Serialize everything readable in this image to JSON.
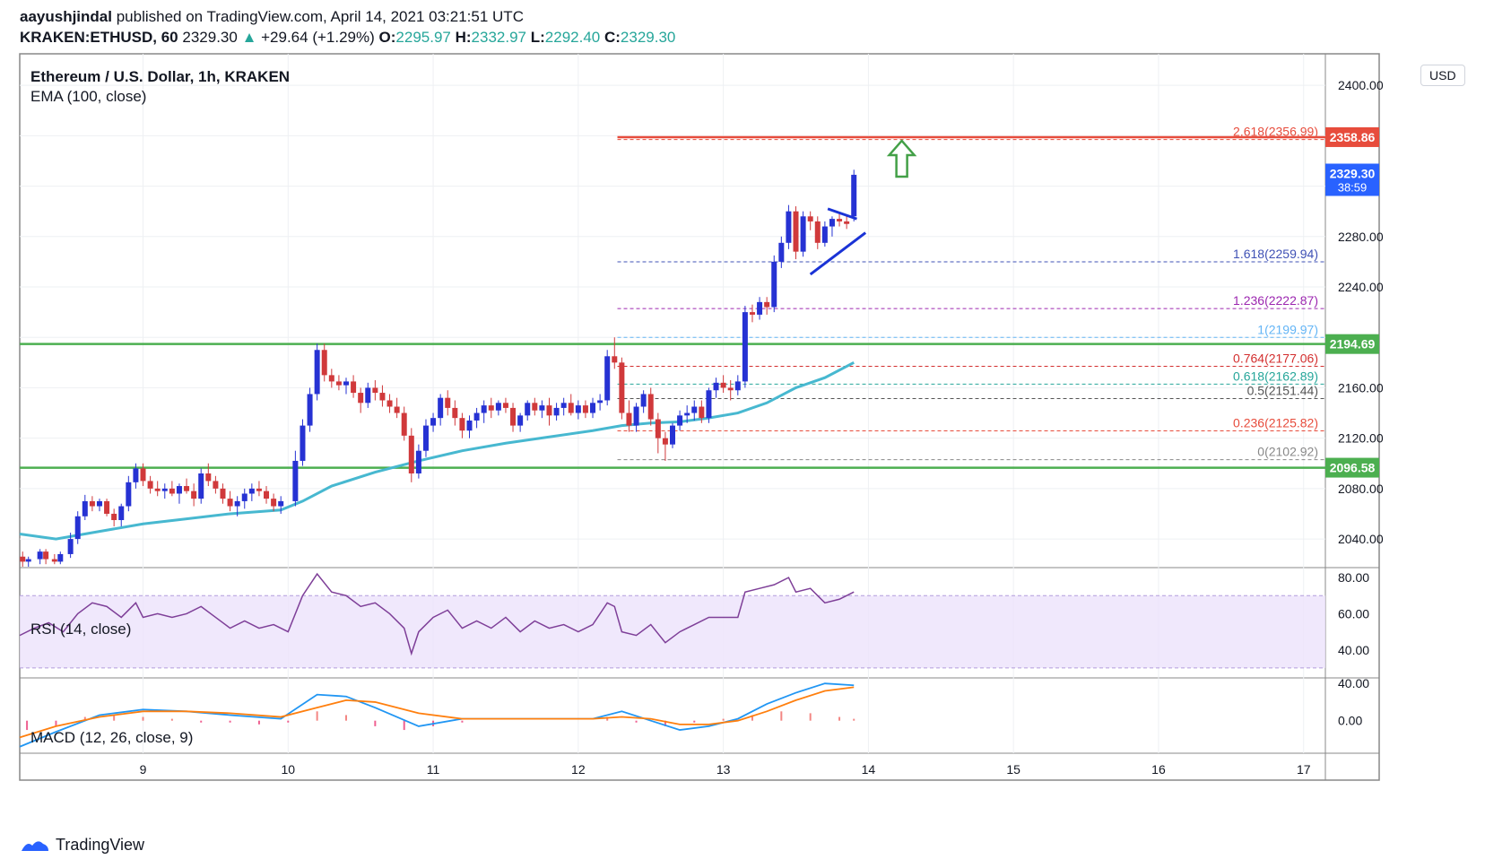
{
  "header": {
    "publisher": "aayushjindal",
    "published_text": "published on TradingView.com, April 14, 2021 03:21:51 UTC",
    "symbol": "KRAKEN:ETHUSD, 60",
    "last": "2329.30",
    "change_arrow": "▲",
    "change": "+29.64 (+1.29%)",
    "o_label": "O:",
    "o": "2295.97",
    "h_label": "H:",
    "h": "2332.97",
    "l_label": "L:",
    "l": "2292.40",
    "c_label": "C:",
    "c": "2329.30"
  },
  "legend": {
    "title": "Ethereum / U.S. Dollar, 1h, KRAKEN",
    "ema": "EMA (100, close)",
    "rsi": "RSI (14, close)",
    "macd": "MACD (12, 26, close, 9)"
  },
  "price_axis": {
    "currency": "USD",
    "ticks": [
      "2400.00",
      "2280.00",
      "2240.00",
      "2160.00",
      "2120.00",
      "2080.00",
      "2040.00"
    ]
  },
  "badges": [
    {
      "text": "2358.86",
      "color": "#e74c3c"
    },
    {
      "text": "2329.30",
      "sub": "38:59",
      "color": "#2962ff"
    },
    {
      "text": "2194.69",
      "color": "#4caf50"
    },
    {
      "text": "2096.58",
      "color": "#4caf50"
    }
  ],
  "rsi_axis": [
    "80.00",
    "60.00",
    "40.00"
  ],
  "macd_axis": [
    "40.00",
    "0.00"
  ],
  "time_axis": [
    "9",
    "10",
    "11",
    "12",
    "13",
    "14",
    "15",
    "16",
    "17"
  ],
  "fib_levels": [
    {
      "label": "2.618(2356.99)",
      "value": 2356.99,
      "color": "#e74c3c"
    },
    {
      "label": "1.618(2259.94)",
      "value": 2259.94,
      "color": "#3f51b5"
    },
    {
      "label": "1.236(2222.87)",
      "value": 2222.87,
      "color": "#9c27b0"
    },
    {
      "label": "1(2199.97)",
      "value": 2199.97,
      "color": "#64b5f6"
    },
    {
      "label": "0.764(2177.06)",
      "value": 2177.06,
      "color": "#d32f2f"
    },
    {
      "label": "0.618(2162.89)",
      "value": 2162.89,
      "color": "#26a69a"
    },
    {
      "label": "0.5(2151.44)",
      "value": 2151.44,
      "color": "#555555"
    },
    {
      "label": "0.236(2125.82)",
      "value": 2125.82,
      "color": "#e74c3c"
    },
    {
      "label": "0(2102.92)",
      "value": 2102.92,
      "color": "#888888"
    }
  ],
  "chart_data": {
    "type": "candlestick",
    "price_range": [
      2018,
      2425
    ],
    "time_range_days": [
      8.15,
      17.15
    ],
    "horizontal_levels": [
      {
        "value": 2358.86,
        "color": "#e74c3c"
      },
      {
        "value": 2194.69,
        "color": "#4caf50"
      },
      {
        "value": 2096.58,
        "color": "#4caf50"
      }
    ],
    "candles": [
      [
        8.17,
        2026,
        2030,
        2018,
        2022
      ],
      [
        8.21,
        2022,
        2026,
        2018,
        2024
      ],
      [
        8.29,
        2024,
        2032,
        2020,
        2030
      ],
      [
        8.33,
        2030,
        2032,
        2020,
        2024
      ],
      [
        8.39,
        2024,
        2028,
        2020,
        2022
      ],
      [
        8.43,
        2022,
        2030,
        2020,
        2028
      ],
      [
        8.5,
        2028,
        2045,
        2025,
        2040
      ],
      [
        8.55,
        2040,
        2062,
        2036,
        2058
      ],
      [
        8.6,
        2058,
        2075,
        2055,
        2070
      ],
      [
        8.65,
        2070,
        2074,
        2062,
        2066
      ],
      [
        8.7,
        2066,
        2072,
        2062,
        2070
      ],
      [
        8.75,
        2070,
        2072,
        2058,
        2060
      ],
      [
        8.8,
        2060,
        2064,
        2050,
        2055
      ],
      [
        8.85,
        2055,
        2068,
        2050,
        2066
      ],
      [
        8.9,
        2066,
        2090,
        2062,
        2085
      ],
      [
        8.95,
        2085,
        2100,
        2080,
        2096
      ],
      [
        9.0,
        2096,
        2100,
        2082,
        2086
      ],
      [
        9.05,
        2086,
        2090,
        2076,
        2080
      ],
      [
        9.1,
        2080,
        2086,
        2074,
        2078
      ],
      [
        9.15,
        2078,
        2084,
        2072,
        2080
      ],
      [
        9.2,
        2080,
        2086,
        2074,
        2076
      ],
      [
        9.25,
        2076,
        2084,
        2068,
        2082
      ],
      [
        9.3,
        2082,
        2088,
        2076,
        2078
      ],
      [
        9.35,
        2078,
        2084,
        2066,
        2072
      ],
      [
        9.4,
        2072,
        2096,
        2068,
        2092
      ],
      [
        9.45,
        2092,
        2100,
        2082,
        2086
      ],
      [
        9.5,
        2086,
        2090,
        2076,
        2080
      ],
      [
        9.55,
        2080,
        2084,
        2068,
        2072
      ],
      [
        9.6,
        2072,
        2078,
        2062,
        2066
      ],
      [
        9.65,
        2066,
        2074,
        2058,
        2070
      ],
      [
        9.7,
        2070,
        2080,
        2064,
        2076
      ],
      [
        9.75,
        2076,
        2084,
        2070,
        2080
      ],
      [
        9.8,
        2080,
        2086,
        2074,
        2078
      ],
      [
        9.85,
        2078,
        2082,
        2068,
        2072
      ],
      [
        9.9,
        2072,
        2076,
        2062,
        2066
      ],
      [
        9.95,
        2066,
        2074,
        2060,
        2070
      ],
      [
        10.05,
        2070,
        2110,
        2066,
        2102
      ],
      [
        10.1,
        2102,
        2135,
        2098,
        2130
      ],
      [
        10.15,
        2130,
        2160,
        2125,
        2155
      ],
      [
        10.2,
        2155,
        2195,
        2150,
        2190
      ],
      [
        10.25,
        2190,
        2195,
        2165,
        2170
      ],
      [
        10.3,
        2170,
        2175,
        2160,
        2165
      ],
      [
        10.35,
        2165,
        2170,
        2158,
        2162
      ],
      [
        10.4,
        2162,
        2168,
        2155,
        2165
      ],
      [
        10.45,
        2165,
        2170,
        2152,
        2156
      ],
      [
        10.5,
        2156,
        2160,
        2140,
        2148
      ],
      [
        10.55,
        2148,
        2164,
        2144,
        2160
      ],
      [
        10.6,
        2160,
        2166,
        2150,
        2156
      ],
      [
        10.65,
        2156,
        2162,
        2145,
        2150
      ],
      [
        10.7,
        2150,
        2155,
        2140,
        2145
      ],
      [
        10.75,
        2145,
        2152,
        2136,
        2140
      ],
      [
        10.8,
        2140,
        2145,
        2118,
        2122
      ],
      [
        10.85,
        2122,
        2128,
        2085,
        2092
      ],
      [
        10.9,
        2092,
        2115,
        2088,
        2110
      ],
      [
        10.95,
        2110,
        2135,
        2105,
        2130
      ],
      [
        11.0,
        2130,
        2140,
        2125,
        2136
      ],
      [
        11.05,
        2136,
        2155,
        2130,
        2152
      ],
      [
        11.1,
        2152,
        2158,
        2138,
        2144
      ],
      [
        11.15,
        2144,
        2150,
        2130,
        2136
      ],
      [
        11.2,
        2136,
        2140,
        2120,
        2126
      ],
      [
        11.25,
        2126,
        2138,
        2120,
        2134
      ],
      [
        11.3,
        2134,
        2144,
        2128,
        2140
      ],
      [
        11.35,
        2140,
        2150,
        2132,
        2146
      ],
      [
        11.4,
        2146,
        2152,
        2136,
        2142
      ],
      [
        11.45,
        2142,
        2150,
        2138,
        2148
      ],
      [
        11.5,
        2148,
        2152,
        2140,
        2144
      ],
      [
        11.55,
        2144,
        2148,
        2125,
        2130
      ],
      [
        11.6,
        2130,
        2140,
        2125,
        2138
      ],
      [
        11.65,
        2138,
        2150,
        2134,
        2148
      ],
      [
        11.7,
        2148,
        2152,
        2138,
        2142
      ],
      [
        11.75,
        2142,
        2150,
        2136,
        2146
      ],
      [
        11.8,
        2146,
        2152,
        2130,
        2138
      ],
      [
        11.85,
        2138,
        2148,
        2134,
        2144
      ],
      [
        11.9,
        2144,
        2152,
        2138,
        2148
      ],
      [
        11.95,
        2148,
        2155,
        2138,
        2140
      ],
      [
        12.0,
        2140,
        2150,
        2135,
        2146
      ],
      [
        12.05,
        2146,
        2150,
        2136,
        2140
      ],
      [
        12.1,
        2140,
        2152,
        2136,
        2148
      ],
      [
        12.15,
        2148,
        2155,
        2142,
        2150
      ],
      [
        12.2,
        2150,
        2190,
        2146,
        2185
      ],
      [
        12.25,
        2185,
        2200,
        2175,
        2180
      ],
      [
        12.3,
        2180,
        2184,
        2135,
        2140
      ],
      [
        12.35,
        2140,
        2150,
        2125,
        2130
      ],
      [
        12.4,
        2130,
        2148,
        2125,
        2145
      ],
      [
        12.45,
        2145,
        2158,
        2140,
        2155
      ],
      [
        12.5,
        2155,
        2160,
        2130,
        2135
      ],
      [
        12.55,
        2135,
        2140,
        2108,
        2120
      ],
      [
        12.6,
        2120,
        2125,
        2102,
        2115
      ],
      [
        12.65,
        2115,
        2132,
        2112,
        2130
      ],
      [
        12.7,
        2130,
        2142,
        2126,
        2138
      ],
      [
        12.75,
        2138,
        2146,
        2132,
        2140
      ],
      [
        12.8,
        2140,
        2150,
        2134,
        2145
      ],
      [
        12.85,
        2145,
        2150,
        2132,
        2136
      ],
      [
        12.9,
        2136,
        2160,
        2132,
        2158
      ],
      [
        12.95,
        2158,
        2168,
        2152,
        2164
      ],
      [
        13.0,
        2164,
        2170,
        2156,
        2160
      ],
      [
        13.05,
        2160,
        2166,
        2150,
        2158
      ],
      [
        13.1,
        2158,
        2170,
        2154,
        2165
      ],
      [
        13.15,
        2165,
        2225,
        2160,
        2220
      ],
      [
        13.2,
        2220,
        2226,
        2212,
        2218
      ],
      [
        13.25,
        2218,
        2232,
        2214,
        2228
      ],
      [
        13.3,
        2228,
        2232,
        2218,
        2224
      ],
      [
        13.35,
        2224,
        2265,
        2220,
        2260
      ],
      [
        13.4,
        2260,
        2280,
        2255,
        2275
      ],
      [
        13.45,
        2275,
        2305,
        2270,
        2300
      ],
      [
        13.5,
        2300,
        2304,
        2262,
        2268
      ],
      [
        13.55,
        2268,
        2300,
        2264,
        2296
      ],
      [
        13.6,
        2296,
        2300,
        2285,
        2292
      ],
      [
        13.65,
        2292,
        2296,
        2270,
        2275
      ],
      [
        13.7,
        2275,
        2292,
        2272,
        2288
      ],
      [
        13.75,
        2288,
        2296,
        2280,
        2294
      ],
      [
        13.8,
        2294,
        2298,
        2288,
        2292
      ],
      [
        13.85,
        2292,
        2296,
        2286,
        2290
      ],
      [
        13.9,
        2296,
        2333,
        2292,
        2329
      ]
    ],
    "ema": [
      [
        8.15,
        2044
      ],
      [
        8.4,
        2040
      ],
      [
        8.7,
        2046
      ],
      [
        9.0,
        2052
      ],
      [
        9.3,
        2056
      ],
      [
        9.6,
        2060
      ],
      [
        9.95,
        2063
      ],
      [
        10.1,
        2070
      ],
      [
        10.3,
        2082
      ],
      [
        10.6,
        2093
      ],
      [
        10.9,
        2102
      ],
      [
        11.2,
        2110
      ],
      [
        11.5,
        2116
      ],
      [
        11.8,
        2121
      ],
      [
        12.1,
        2126
      ],
      [
        12.3,
        2130
      ],
      [
        12.5,
        2132
      ],
      [
        12.7,
        2133
      ],
      [
        12.9,
        2136
      ],
      [
        13.1,
        2140
      ],
      [
        13.3,
        2148
      ],
      [
        13.5,
        2160
      ],
      [
        13.7,
        2168
      ],
      [
        13.9,
        2180
      ]
    ],
    "rsi_range": [
      25,
      85
    ],
    "rsi": [
      [
        8.15,
        48
      ],
      [
        8.25,
        52
      ],
      [
        8.35,
        55
      ],
      [
        8.45,
        50
      ],
      [
        8.55,
        60
      ],
      [
        8.65,
        66
      ],
      [
        8.75,
        64
      ],
      [
        8.85,
        58
      ],
      [
        8.95,
        66
      ],
      [
        9.0,
        58
      ],
      [
        9.1,
        60
      ],
      [
        9.2,
        58
      ],
      [
        9.3,
        60
      ],
      [
        9.4,
        64
      ],
      [
        9.5,
        58
      ],
      [
        9.6,
        52
      ],
      [
        9.7,
        56
      ],
      [
        9.8,
        52
      ],
      [
        9.9,
        54
      ],
      [
        10.0,
        50
      ],
      [
        10.1,
        70
      ],
      [
        10.2,
        82
      ],
      [
        10.3,
        72
      ],
      [
        10.4,
        70
      ],
      [
        10.5,
        64
      ],
      [
        10.6,
        66
      ],
      [
        10.7,
        60
      ],
      [
        10.8,
        52
      ],
      [
        10.85,
        38
      ],
      [
        10.9,
        50
      ],
      [
        11.0,
        58
      ],
      [
        11.1,
        62
      ],
      [
        11.2,
        52
      ],
      [
        11.3,
        56
      ],
      [
        11.4,
        52
      ],
      [
        11.5,
        58
      ],
      [
        11.6,
        50
      ],
      [
        11.7,
        56
      ],
      [
        11.8,
        52
      ],
      [
        11.9,
        54
      ],
      [
        12.0,
        50
      ],
      [
        12.1,
        54
      ],
      [
        12.2,
        66
      ],
      [
        12.25,
        64
      ],
      [
        12.3,
        50
      ],
      [
        12.4,
        48
      ],
      [
        12.5,
        54
      ],
      [
        12.6,
        44
      ],
      [
        12.7,
        50
      ],
      [
        12.8,
        54
      ],
      [
        12.9,
        58
      ],
      [
        13.0,
        58
      ],
      [
        13.1,
        58
      ],
      [
        13.15,
        72
      ],
      [
        13.25,
        74
      ],
      [
        13.35,
        76
      ],
      [
        13.45,
        80
      ],
      [
        13.5,
        72
      ],
      [
        13.6,
        74
      ],
      [
        13.7,
        66
      ],
      [
        13.8,
        68
      ],
      [
        13.9,
        72
      ]
    ],
    "macd_range": [
      -35,
      45
    ],
    "macd": [
      [
        8.15,
        -28
      ],
      [
        8.4,
        -12
      ],
      [
        8.7,
        6
      ],
      [
        9.0,
        12
      ],
      [
        9.3,
        10
      ],
      [
        9.6,
        6
      ],
      [
        9.95,
        2
      ],
      [
        10.2,
        28
      ],
      [
        10.4,
        26
      ],
      [
        10.6,
        14
      ],
      [
        10.9,
        -6
      ],
      [
        11.2,
        2
      ],
      [
        11.5,
        2
      ],
      [
        11.8,
        2
      ],
      [
        12.1,
        2
      ],
      [
        12.3,
        10
      ],
      [
        12.5,
        0
      ],
      [
        12.7,
        -10
      ],
      [
        12.9,
        -6
      ],
      [
        13.1,
        2
      ],
      [
        13.3,
        18
      ],
      [
        13.5,
        30
      ],
      [
        13.7,
        40
      ],
      [
        13.9,
        38
      ]
    ],
    "signal": [
      [
        8.15,
        -18
      ],
      [
        8.4,
        -6
      ],
      [
        8.7,
        4
      ],
      [
        9.0,
        10
      ],
      [
        9.3,
        10
      ],
      [
        9.6,
        8
      ],
      [
        9.95,
        4
      ],
      [
        10.2,
        14
      ],
      [
        10.4,
        22
      ],
      [
        10.6,
        20
      ],
      [
        10.9,
        8
      ],
      [
        11.2,
        2
      ],
      [
        11.5,
        2
      ],
      [
        11.8,
        2
      ],
      [
        12.1,
        2
      ],
      [
        12.3,
        4
      ],
      [
        12.5,
        2
      ],
      [
        12.7,
        -4
      ],
      [
        12.9,
        -4
      ],
      [
        13.1,
        0
      ],
      [
        13.3,
        10
      ],
      [
        13.5,
        22
      ],
      [
        13.7,
        32
      ],
      [
        13.9,
        36
      ]
    ],
    "hist": [
      [
        8.2,
        -10
      ],
      [
        8.4,
        -6
      ],
      [
        8.6,
        4
      ],
      [
        8.8,
        6
      ],
      [
        9.0,
        4
      ],
      [
        9.2,
        2
      ],
      [
        9.4,
        -2
      ],
      [
        9.6,
        -2
      ],
      [
        9.8,
        -4
      ],
      [
        10.0,
        -2
      ],
      [
        10.2,
        10
      ],
      [
        10.4,
        6
      ],
      [
        10.6,
        -6
      ],
      [
        10.8,
        -10
      ],
      [
        11.0,
        -6
      ],
      [
        11.2,
        -2
      ],
      [
        11.4,
        0
      ],
      [
        11.6,
        0
      ],
      [
        11.8,
        0
      ],
      [
        12.0,
        0
      ],
      [
        12.2,
        4
      ],
      [
        12.4,
        -2
      ],
      [
        12.6,
        -6
      ],
      [
        12.8,
        -2
      ],
      [
        13.0,
        2
      ],
      [
        13.2,
        6
      ],
      [
        13.4,
        10
      ],
      [
        13.6,
        8
      ],
      [
        13.8,
        4
      ],
      [
        13.9,
        2
      ]
    ]
  }
}
